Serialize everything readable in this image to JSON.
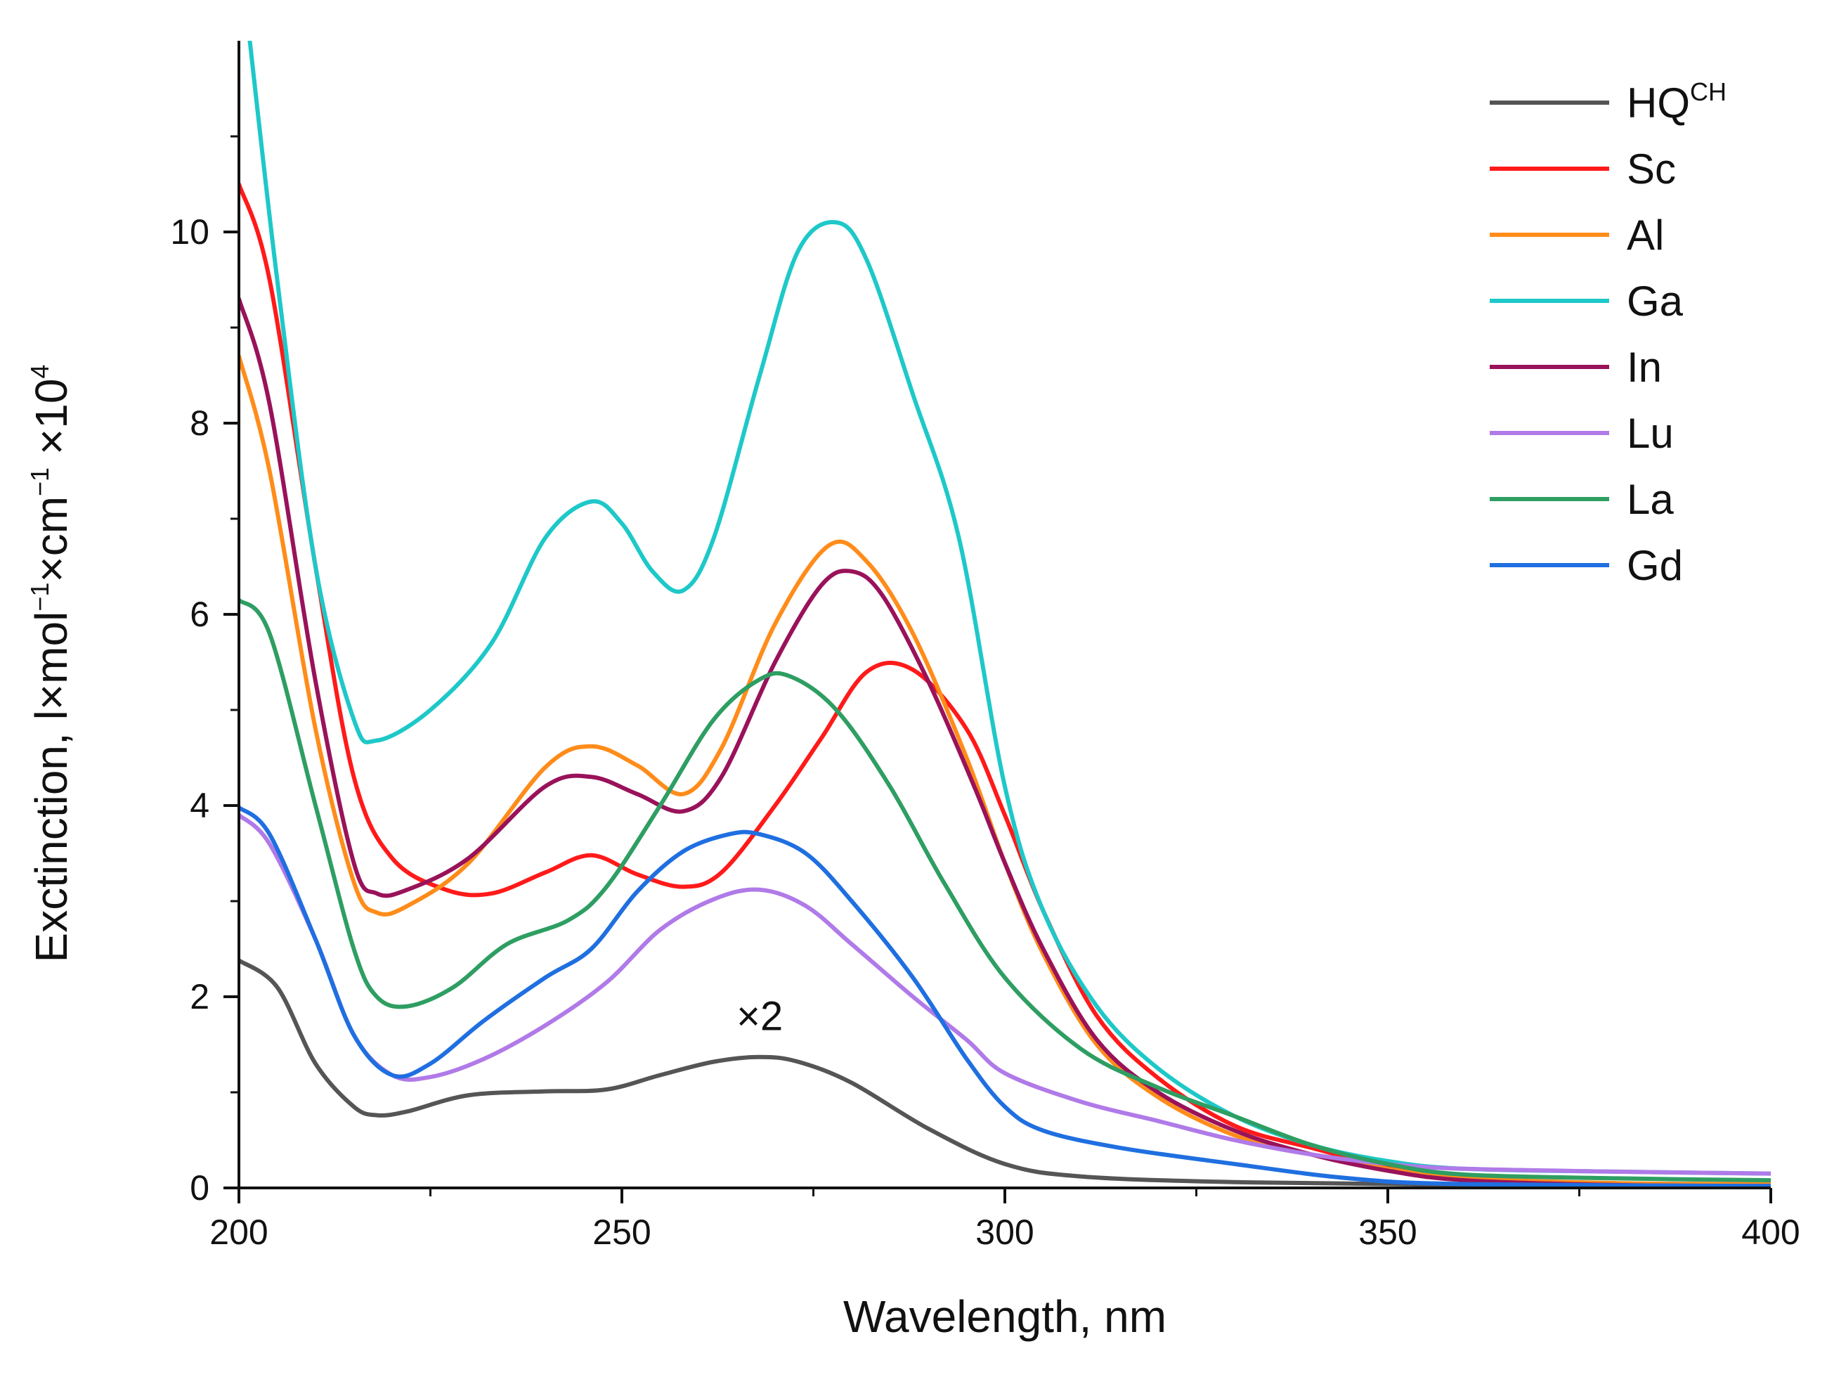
{
  "chart_data": {
    "type": "line",
    "title": "",
    "xlabel": "Wavelength, nm",
    "ylabel": {
      "main": "Exctinction, l×mol",
      "sup1": "−1",
      "mid": "×cm",
      "sup2": "−1",
      "tail": " ×10",
      "sup3": "4"
    },
    "xlim": [
      200,
      400
    ],
    "ylim": [
      0,
      12
    ],
    "x_ticks": [
      200,
      250,
      300,
      350,
      400
    ],
    "x_tick_labels": [
      "200",
      "250",
      "300",
      "350",
      "400"
    ],
    "y_ticks": [
      0,
      2,
      4,
      6,
      8,
      10
    ],
    "y_tick_labels": [
      "0",
      "2",
      "4",
      "6",
      "8",
      "10"
    ],
    "legend_position": "top-right",
    "annotation": {
      "text": "×2",
      "x": 268,
      "y": 1.65
    },
    "series": [
      {
        "name": "HQ",
        "name_sup": "CH",
        "color": "#555555",
        "points": [
          [
            200,
            2.38
          ],
          [
            205,
            2.1
          ],
          [
            210,
            1.3
          ],
          [
            215,
            0.85
          ],
          [
            218,
            0.76
          ],
          [
            222,
            0.8
          ],
          [
            230,
            0.97
          ],
          [
            240,
            1.01
          ],
          [
            248,
            1.03
          ],
          [
            255,
            1.18
          ],
          [
            262,
            1.32
          ],
          [
            268,
            1.37
          ],
          [
            273,
            1.32
          ],
          [
            280,
            1.1
          ],
          [
            290,
            0.62
          ],
          [
            300,
            0.25
          ],
          [
            310,
            0.12
          ],
          [
            330,
            0.06
          ],
          [
            360,
            0.03
          ],
          [
            400,
            0.02
          ]
        ]
      },
      {
        "name": "Sc",
        "color": "#ff1a1a",
        "points": [
          [
            200,
            10.5
          ],
          [
            204,
            9.5
          ],
          [
            210,
            6.5
          ],
          [
            215,
            4.3
          ],
          [
            220,
            3.45
          ],
          [
            227,
            3.12
          ],
          [
            233,
            3.08
          ],
          [
            240,
            3.3
          ],
          [
            246,
            3.48
          ],
          [
            252,
            3.28
          ],
          [
            258,
            3.15
          ],
          [
            263,
            3.3
          ],
          [
            270,
            4.0
          ],
          [
            276,
            4.7
          ],
          [
            282,
            5.4
          ],
          [
            288,
            5.42
          ],
          [
            295,
            4.8
          ],
          [
            300,
            3.9
          ],
          [
            305,
            2.9
          ],
          [
            312,
            1.8
          ],
          [
            320,
            1.15
          ],
          [
            330,
            0.65
          ],
          [
            340,
            0.42
          ],
          [
            350,
            0.22
          ],
          [
            360,
            0.1
          ],
          [
            380,
            0.04
          ],
          [
            400,
            0.02
          ]
        ]
      },
      {
        "name": "Al",
        "color": "#ff8c1a",
        "points": [
          [
            200,
            8.7
          ],
          [
            204,
            7.5
          ],
          [
            210,
            4.8
          ],
          [
            215,
            3.2
          ],
          [
            218,
            2.88
          ],
          [
            222,
            2.95
          ],
          [
            230,
            3.4
          ],
          [
            240,
            4.4
          ],
          [
            246,
            4.62
          ],
          [
            252,
            4.42
          ],
          [
            258,
            4.12
          ],
          [
            263,
            4.6
          ],
          [
            270,
            5.9
          ],
          [
            277,
            6.72
          ],
          [
            282,
            6.55
          ],
          [
            288,
            5.8
          ],
          [
            295,
            4.5
          ],
          [
            300,
            3.4
          ],
          [
            305,
            2.45
          ],
          [
            312,
            1.5
          ],
          [
            320,
            0.95
          ],
          [
            330,
            0.55
          ],
          [
            340,
            0.35
          ],
          [
            350,
            0.2
          ],
          [
            360,
            0.1
          ],
          [
            380,
            0.05
          ],
          [
            400,
            0.04
          ]
        ]
      },
      {
        "name": "Ga",
        "color": "#1ec8c8",
        "points": [
          [
            201,
            12.3
          ],
          [
            205,
            9.5
          ],
          [
            210,
            6.5
          ],
          [
            215,
            4.9
          ],
          [
            218,
            4.68
          ],
          [
            225,
            5.0
          ],
          [
            233,
            5.7
          ],
          [
            240,
            6.8
          ],
          [
            246,
            7.18
          ],
          [
            250,
            6.95
          ],
          [
            254,
            6.45
          ],
          [
            258,
            6.25
          ],
          [
            262,
            6.8
          ],
          [
            268,
            8.5
          ],
          [
            273,
            9.8
          ],
          [
            278,
            10.1
          ],
          [
            282,
            9.7
          ],
          [
            288,
            8.3
          ],
          [
            294,
            6.8
          ],
          [
            300,
            4.2
          ],
          [
            305,
            2.9
          ],
          [
            312,
            1.9
          ],
          [
            320,
            1.25
          ],
          [
            330,
            0.75
          ],
          [
            340,
            0.45
          ],
          [
            350,
            0.28
          ],
          [
            360,
            0.2
          ],
          [
            380,
            0.17
          ],
          [
            400,
            0.15
          ]
        ]
      },
      {
        "name": "In",
        "color": "#99125a",
        "points": [
          [
            200,
            9.3
          ],
          [
            204,
            8.2
          ],
          [
            210,
            5.3
          ],
          [
            215,
            3.4
          ],
          [
            218,
            3.08
          ],
          [
            222,
            3.12
          ],
          [
            230,
            3.45
          ],
          [
            240,
            4.2
          ],
          [
            246,
            4.3
          ],
          [
            252,
            4.12
          ],
          [
            258,
            3.94
          ],
          [
            263,
            4.3
          ],
          [
            270,
            5.5
          ],
          [
            276,
            6.3
          ],
          [
            280,
            6.45
          ],
          [
            284,
            6.2
          ],
          [
            290,
            5.3
          ],
          [
            296,
            4.2
          ],
          [
            300,
            3.4
          ],
          [
            305,
            2.5
          ],
          [
            312,
            1.55
          ],
          [
            320,
            1.0
          ],
          [
            330,
            0.6
          ],
          [
            340,
            0.35
          ],
          [
            350,
            0.18
          ],
          [
            360,
            0.08
          ],
          [
            380,
            0.03
          ],
          [
            400,
            0.02
          ]
        ]
      },
      {
        "name": "Lu",
        "color": "#b07ae8",
        "points": [
          [
            200,
            3.9
          ],
          [
            204,
            3.6
          ],
          [
            210,
            2.6
          ],
          [
            215,
            1.6
          ],
          [
            220,
            1.18
          ],
          [
            225,
            1.16
          ],
          [
            232,
            1.35
          ],
          [
            240,
            1.7
          ],
          [
            248,
            2.15
          ],
          [
            255,
            2.7
          ],
          [
            262,
            3.02
          ],
          [
            268,
            3.12
          ],
          [
            274,
            2.95
          ],
          [
            280,
            2.55
          ],
          [
            288,
            2.0
          ],
          [
            295,
            1.55
          ],
          [
            300,
            1.2
          ],
          [
            310,
            0.9
          ],
          [
            320,
            0.7
          ],
          [
            330,
            0.5
          ],
          [
            340,
            0.35
          ],
          [
            350,
            0.25
          ],
          [
            360,
            0.2
          ],
          [
            380,
            0.17
          ],
          [
            400,
            0.15
          ]
        ]
      },
      {
        "name": "La",
        "color": "#2e9e62",
        "points": [
          [
            200,
            6.15
          ],
          [
            204,
            5.8
          ],
          [
            210,
            4.0
          ],
          [
            215,
            2.5
          ],
          [
            218,
            2.0
          ],
          [
            222,
            1.9
          ],
          [
            228,
            2.1
          ],
          [
            235,
            2.55
          ],
          [
            243,
            2.8
          ],
          [
            248,
            3.15
          ],
          [
            255,
            4.0
          ],
          [
            262,
            4.9
          ],
          [
            268,
            5.32
          ],
          [
            272,
            5.35
          ],
          [
            278,
            5.0
          ],
          [
            285,
            4.2
          ],
          [
            292,
            3.2
          ],
          [
            300,
            2.2
          ],
          [
            310,
            1.45
          ],
          [
            320,
            1.05
          ],
          [
            330,
            0.75
          ],
          [
            340,
            0.45
          ],
          [
            350,
            0.25
          ],
          [
            360,
            0.14
          ],
          [
            380,
            0.1
          ],
          [
            400,
            0.08
          ]
        ]
      },
      {
        "name": "Gd",
        "color": "#1f6fe0",
        "points": [
          [
            200,
            3.98
          ],
          [
            204,
            3.7
          ],
          [
            210,
            2.6
          ],
          [
            215,
            1.6
          ],
          [
            220,
            1.18
          ],
          [
            225,
            1.3
          ],
          [
            232,
            1.75
          ],
          [
            240,
            2.2
          ],
          [
            246,
            2.5
          ],
          [
            252,
            3.1
          ],
          [
            258,
            3.52
          ],
          [
            264,
            3.7
          ],
          [
            268,
            3.7
          ],
          [
            274,
            3.5
          ],
          [
            280,
            3.0
          ],
          [
            288,
            2.2
          ],
          [
            295,
            1.35
          ],
          [
            300,
            0.85
          ],
          [
            305,
            0.6
          ],
          [
            315,
            0.42
          ],
          [
            330,
            0.25
          ],
          [
            345,
            0.1
          ],
          [
            360,
            0.04
          ],
          [
            400,
            0.02
          ]
        ]
      }
    ]
  }
}
